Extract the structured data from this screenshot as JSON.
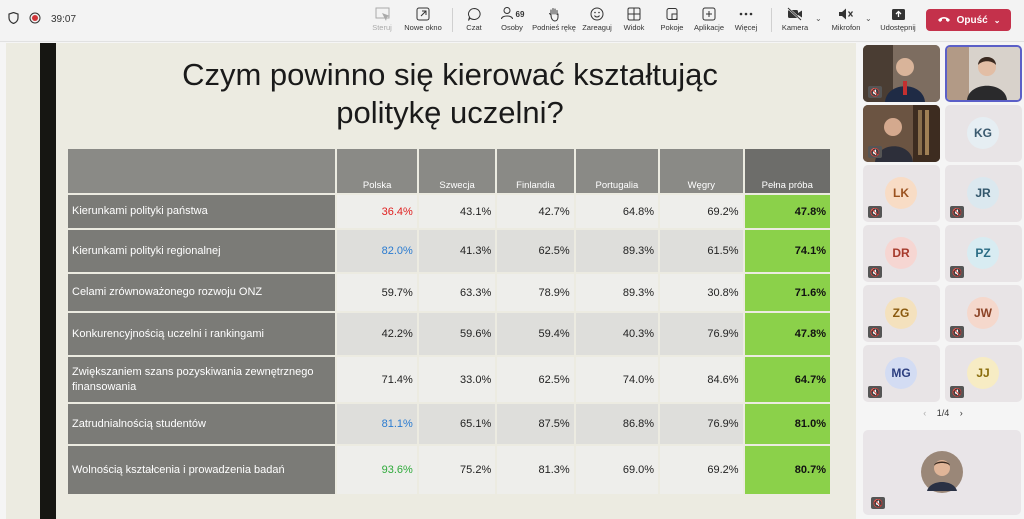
{
  "toolbar": {
    "timer": "39:07",
    "buttons": {
      "steruj": "Steruj",
      "nowe_okno": "Nowe okno",
      "czat": "Czat",
      "osoby": "Osoby",
      "osoby_count": "69",
      "podnies": "Podnieś rękę",
      "zareaguj": "Zareaguj",
      "widok": "Widok",
      "pokoje": "Pokoje",
      "aplikacje": "Aplikacje",
      "wiecej": "Więcej",
      "kamera": "Kamera",
      "mikrofon": "Mikrofon",
      "udostepnij": "Udostępnij"
    },
    "leave_label": "Opuść",
    "leave_color": "#c4314b"
  },
  "slide": {
    "title_line1": "Czym powinno się kierować kształtując",
    "title_line2": "politykę uczelni?",
    "columns": [
      "",
      "Polska",
      "Szwecja",
      "Finlandia",
      "Portugalia",
      "Węgry",
      "Pełna próba"
    ],
    "rows": [
      {
        "label": "Kierunkami polityki państwa",
        "values": [
          "36.4%",
          "43.1%",
          "42.7%",
          "64.8%",
          "69.2%",
          "47.8%"
        ],
        "polska_color": "#e02020"
      },
      {
        "label": "Kierunkami polityki regionalnej",
        "values": [
          "82.0%",
          "41.3%",
          "62.5%",
          "89.3%",
          "61.5%",
          "74.1%"
        ],
        "polska_color": "#2a7bd0"
      },
      {
        "label": "Celami zrównoważonego rozwoju ONZ",
        "values": [
          "59.7%",
          "63.3%",
          "78.9%",
          "89.3%",
          "30.8%",
          "71.6%"
        ],
        "polska_color": "#222222"
      },
      {
        "label": "Konkurencyjnością uczelni i rankingami",
        "values": [
          "42.2%",
          "59.6%",
          "59.4%",
          "40.3%",
          "76.9%",
          "47.8%"
        ],
        "polska_color": "#222222"
      },
      {
        "label": "Zwiększaniem szans pozyskiwania zewnętrznego finansowania",
        "values": [
          "71.4%",
          "33.0%",
          "62.5%",
          "74.0%",
          "84.6%",
          "64.7%"
        ],
        "polska_color": "#222222"
      },
      {
        "label": "Zatrudnialnością studentów",
        "values": [
          "81.1%",
          "65.1%",
          "87.5%",
          "86.8%",
          "76.9%",
          "81.0%"
        ],
        "polska_color": "#2a7bd0"
      },
      {
        "label": "Wolnością kształcenia i prowadzenia badań",
        "values": [
          "93.6%",
          "75.2%",
          "81.3%",
          "69.0%",
          "69.2%",
          "80.7%"
        ],
        "polska_color": "#2eaa3a"
      }
    ],
    "highlight_color": "#8bd14a"
  },
  "participants": [
    {
      "initials": "",
      "video": true
    },
    {
      "initials": "",
      "video": true
    },
    {
      "initials": "",
      "video": true
    },
    {
      "initials": "KG",
      "bg": "#e6eef3",
      "fg": "#3b5a6f"
    },
    {
      "initials": "LK",
      "bg": "#f8dcc5",
      "fg": "#9a5220"
    },
    {
      "initials": "JR",
      "bg": "#dbe8ef",
      "fg": "#32566b"
    },
    {
      "initials": "DR",
      "bg": "#f6d6d2",
      "fg": "#a63a2c"
    },
    {
      "initials": "PZ",
      "bg": "#d8ecf2",
      "fg": "#2a6c84"
    },
    {
      "initials": "ZG",
      "bg": "#f4e1bd",
      "fg": "#8a5a10"
    },
    {
      "initials": "JW",
      "bg": "#f5d8cc",
      "fg": "#8c4326"
    },
    {
      "initials": "MG",
      "bg": "#d3dcf3",
      "fg": "#2d3f80"
    },
    {
      "initials": "JJ",
      "bg": "#f7ecc4",
      "fg": "#8a6d0c"
    }
  ],
  "pager": {
    "label": "1/4"
  }
}
